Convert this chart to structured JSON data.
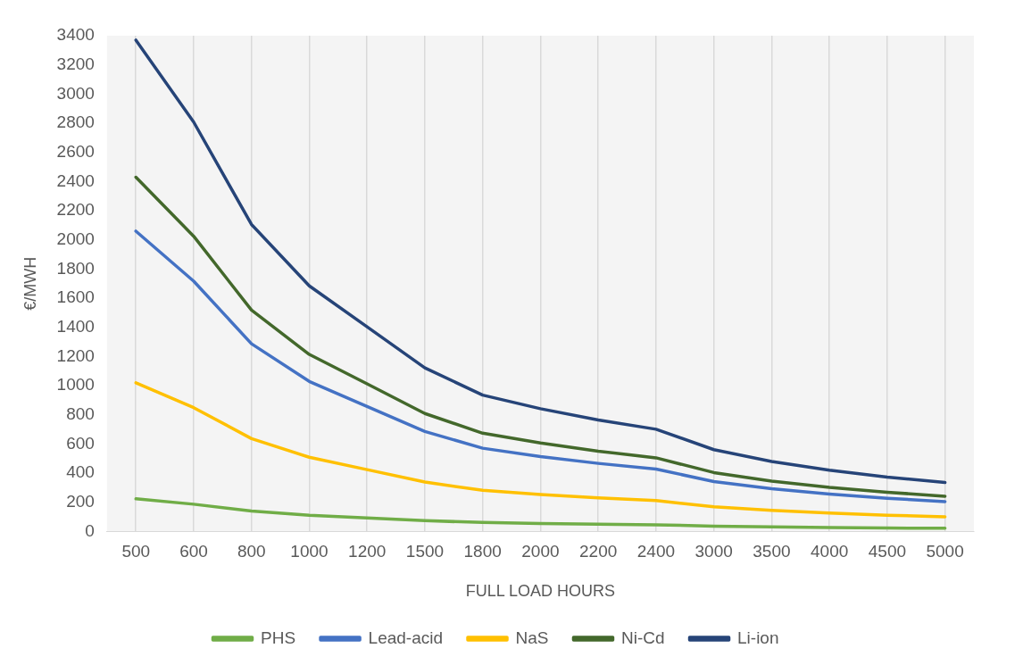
{
  "chart_data": {
    "type": "line",
    "xlabel": "FULL LOAD HOURS",
    "ylabel": "€/MWH",
    "categories": [
      "500",
      "600",
      "800",
      "1000",
      "1200",
      "1500",
      "1800",
      "2000",
      "2200",
      "2400",
      "3000",
      "3500",
      "4000",
      "4500",
      "5000"
    ],
    "series": [
      {
        "name": "PHS",
        "color": "#70ad47",
        "values": [
          225,
          188,
          141,
          113,
          94,
          75,
          63,
          56,
          51,
          47,
          38,
          32,
          28,
          25,
          23
        ]
      },
      {
        "name": "Lead-acid",
        "color": "#4472c4",
        "values": [
          2060,
          1717,
          1288,
          1030,
          858,
          687,
          572,
          515,
          468,
          429,
          343,
          294,
          258,
          229,
          206
        ]
      },
      {
        "name": "NaS",
        "color": "#ffc000",
        "values": [
          1020,
          850,
          638,
          510,
          425,
          340,
          283,
          255,
          232,
          213,
          170,
          146,
          128,
          113,
          102
        ]
      },
      {
        "name": "Ni-Cd",
        "color": "#43682b",
        "values": [
          2430,
          2025,
          1519,
          1215,
          1013,
          810,
          675,
          608,
          552,
          506,
          405,
          347,
          304,
          270,
          243
        ]
      },
      {
        "name": "Li-ion",
        "color": "#264478",
        "values": [
          3370,
          2808,
          2106,
          1685,
          1404,
          1123,
          936,
          843,
          766,
          702,
          562,
          481,
          421,
          374,
          337
        ]
      }
    ],
    "ylim": [
      0,
      3400
    ],
    "yticks": [
      0,
      200,
      400,
      600,
      800,
      1000,
      1200,
      1400,
      1600,
      1800,
      2000,
      2200,
      2400,
      2600,
      2800,
      3000,
      3200,
      3400
    ],
    "grid": "x",
    "legend": "bottom",
    "marker": "none",
    "line_style": "solid"
  }
}
